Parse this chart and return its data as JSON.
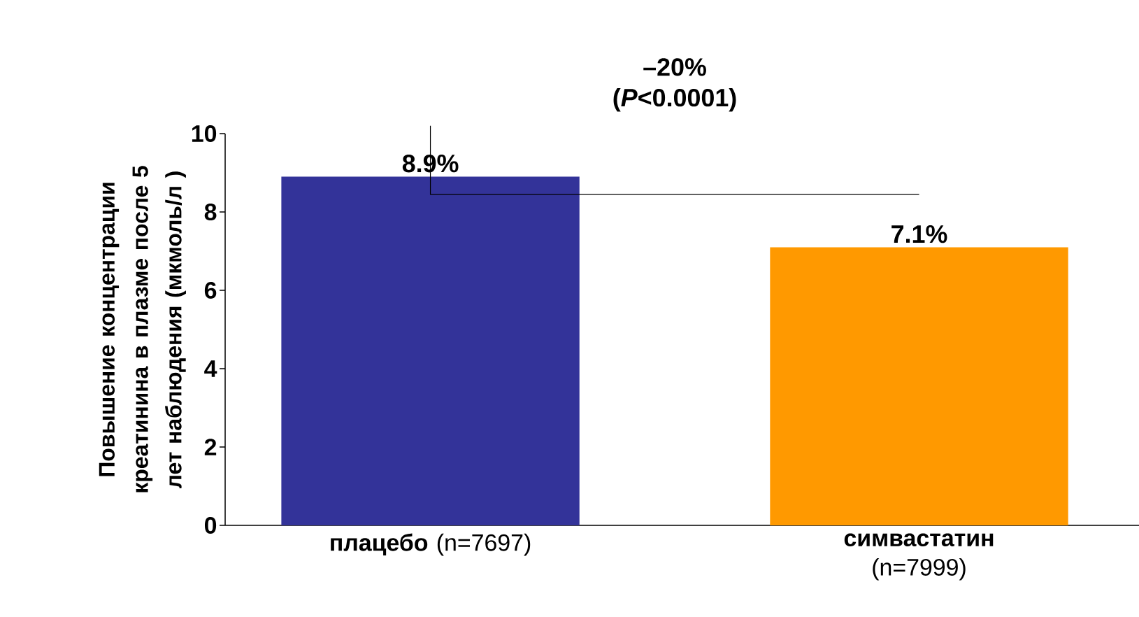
{
  "chart_data": {
    "type": "bar",
    "ylabel": "Повышение концентрации креатинина в плазме после 5 лет наблюдения (мкмоль/л )",
    "categories": [
      "**плацебо** (n=7697)",
      "**симвастатин** (n=7999)"
    ],
    "values": [
      8.9,
      7.1
    ],
    "colors": [
      "#333399",
      "#ff9900"
    ],
    "value_labels": [
      "8.9%",
      "7.1%"
    ],
    "ylim": [
      0,
      10
    ],
    "yticks": [
      0,
      2,
      4,
      6,
      8,
      10
    ],
    "annotations": [
      "–20% (*P*<0.0001)"
    ],
    "grid": false
  }
}
